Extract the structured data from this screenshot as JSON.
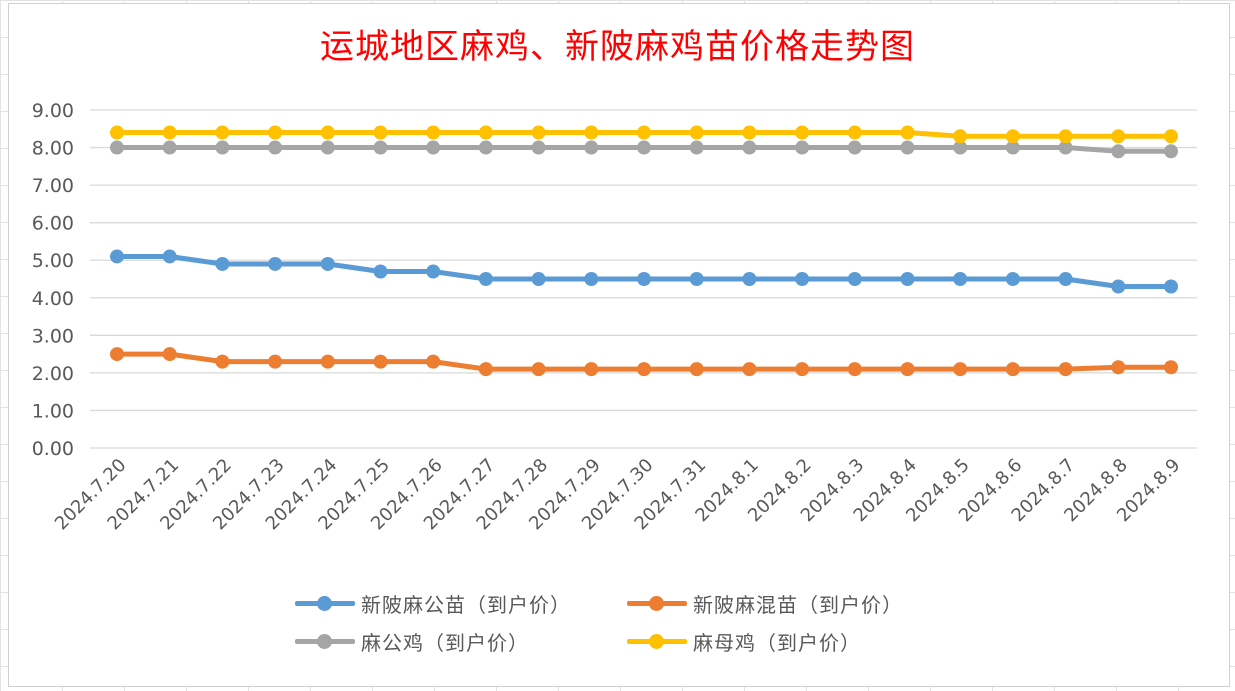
{
  "chart_data": {
    "type": "line",
    "title": "运城地区麻鸡、新陂麻鸡苗价格走势图",
    "xlabel": "",
    "ylabel": "",
    "ylim": [
      0,
      9
    ],
    "ytick_step": 1,
    "ytick_labels": [
      "0.00",
      "1.00",
      "2.00",
      "3.00",
      "4.00",
      "5.00",
      "6.00",
      "7.00",
      "8.00",
      "9.00"
    ],
    "grid": true,
    "legend_position": "bottom",
    "categories": [
      "2024.7.20",
      "2024.7.21",
      "2024.7.22",
      "2024.7.23",
      "2024.7.24",
      "2024.7.25",
      "2024.7.26",
      "2024.7.27",
      "2024.7.28",
      "2024.7.29",
      "2024.7.30",
      "2024.7.31",
      "2024.8.1",
      "2024.8.2",
      "2024.8.3",
      "2024.8.4",
      "2024.8.5",
      "2024.8.6",
      "2024.8.7",
      "2024.8.8",
      "2024.8.9"
    ],
    "series": [
      {
        "name": "新陂麻公苗（到户价）",
        "color": "#5b9bd5",
        "values": [
          5.1,
          5.1,
          4.9,
          4.9,
          4.9,
          4.7,
          4.7,
          4.5,
          4.5,
          4.5,
          4.5,
          4.5,
          4.5,
          4.5,
          4.5,
          4.5,
          4.5,
          4.5,
          4.5,
          4.3,
          4.3
        ]
      },
      {
        "name": "新陂麻混苗（到户价）",
        "color": "#ed7d31",
        "values": [
          2.5,
          2.5,
          2.3,
          2.3,
          2.3,
          2.3,
          2.3,
          2.1,
          2.1,
          2.1,
          2.1,
          2.1,
          2.1,
          2.1,
          2.1,
          2.1,
          2.1,
          2.1,
          2.1,
          2.15,
          2.15
        ]
      },
      {
        "name": "麻公鸡（到户价）",
        "color": "#a5a5a5",
        "values": [
          8.0,
          8.0,
          8.0,
          8.0,
          8.0,
          8.0,
          8.0,
          8.0,
          8.0,
          8.0,
          8.0,
          8.0,
          8.0,
          8.0,
          8.0,
          8.0,
          8.0,
          8.0,
          8.0,
          7.9,
          7.9
        ]
      },
      {
        "name": "麻母鸡（到户价）",
        "color": "#ffc000",
        "values": [
          8.4,
          8.4,
          8.4,
          8.4,
          8.4,
          8.4,
          8.4,
          8.4,
          8.4,
          8.4,
          8.4,
          8.4,
          8.4,
          8.4,
          8.4,
          8.4,
          8.3,
          8.3,
          8.3,
          8.3,
          8.3
        ]
      }
    ]
  }
}
